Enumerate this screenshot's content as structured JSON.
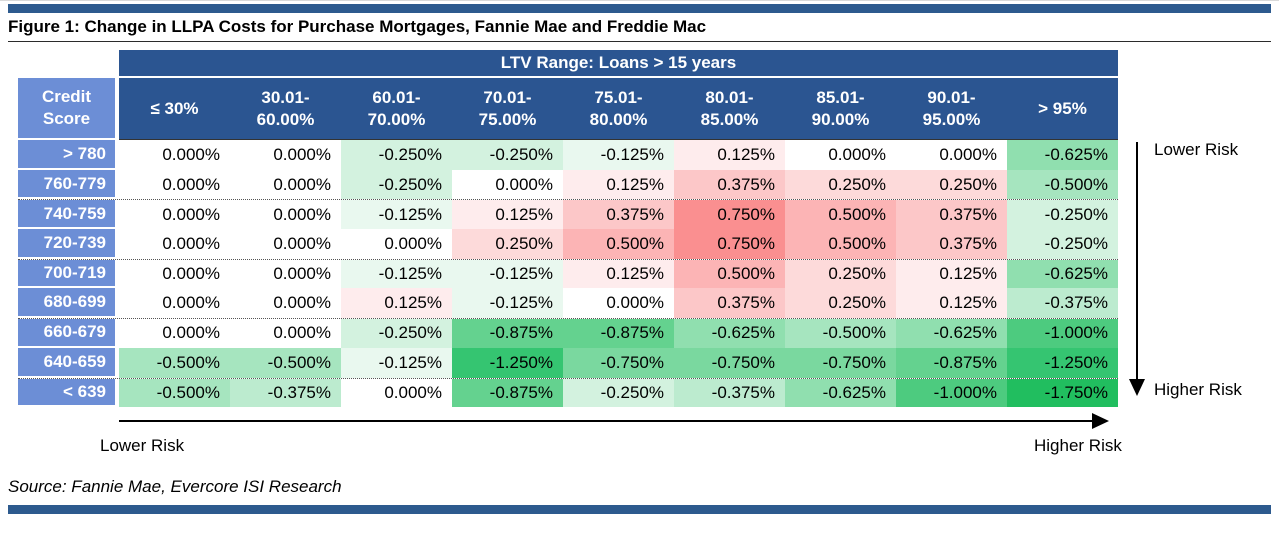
{
  "header": {
    "figure_label": "Figure 1",
    "separator": ": "
  },
  "colors": {
    "header_navy": "#2B5591",
    "label_blue": "#6C8ED6",
    "bar_navy": "#2D5A8E",
    "positive_max_red": "#F8696B",
    "negative_max_green": "#21BE5F",
    "zero_white": "#FFFFFF"
  },
  "chart_data": {
    "type": "heatmap",
    "title": "Change in LLPA Costs for Purchase Mortgages, Fannie Mae and Freddie Mac",
    "group_header": "LTV Range: Loans > 15 years",
    "row_axis_label": "Credit\nScore",
    "columns": [
      "≤ 30%",
      "30.01-\n60.00%",
      "60.01-\n70.00%",
      "70.01-\n75.00%",
      "75.01-\n80.00%",
      "80.01-\n85.00%",
      "85.01-\n90.00%",
      "90.01-\n95.00%",
      "> 95%"
    ],
    "rows": [
      "> 780",
      "760-779",
      "740-759",
      "720-739",
      "700-719",
      "680-699",
      "660-679",
      "640-659",
      "< 639"
    ],
    "values": [
      [
        0,
        0,
        -0.25,
        -0.25,
        -0.125,
        0.125,
        0,
        0,
        -0.625
      ],
      [
        0,
        0,
        -0.25,
        0,
        0.125,
        0.375,
        0.25,
        0.25,
        -0.5
      ],
      [
        0,
        0,
        -0.125,
        0.125,
        0.375,
        0.75,
        0.5,
        0.375,
        -0.25
      ],
      [
        0,
        0,
        0,
        0.25,
        0.5,
        0.75,
        0.5,
        0.375,
        -0.25
      ],
      [
        0,
        0,
        -0.125,
        -0.125,
        0.125,
        0.5,
        0.25,
        0.125,
        -0.625
      ],
      [
        0,
        0,
        0.125,
        -0.125,
        0,
        0.375,
        0.25,
        0.125,
        -0.375
      ],
      [
        0,
        0,
        -0.25,
        -0.875,
        -0.875,
        -0.625,
        -0.5,
        -0.625,
        -1
      ],
      [
        -0.5,
        -0.5,
        -0.125,
        -1.25,
        -0.75,
        -0.75,
        -0.75,
        -0.875,
        -1.25
      ],
      [
        -0.5,
        -0.375,
        0,
        -0.875,
        -0.25,
        -0.375,
        -0.625,
        -1,
        -1.75
      ]
    ],
    "value_format": "0.000%",
    "cell_colors": {
      "0.750": "#FA8F90",
      "0.500": "#FCB4B5",
      "0.375": "#FCC7C8",
      "0.250": "#FDDADA",
      "0.125": "#FEECED",
      "0.000": "#FFFFFF",
      "-0.125": "#E9F8EF",
      "-0.250": "#D3F2DF",
      "-0.375": "#BCEBCF",
      "-0.500": "#A6E5BF",
      "-0.625": "#90DFAF",
      "-0.750": "#7AD89F",
      "-0.875": "#64D28F",
      "-1.000": "#4DCB7F",
      "-1.250": "#35C571",
      "-1.750": "#21BE5F"
    },
    "annotations": {
      "right_top": "Lower Risk",
      "right_bottom": "Higher Risk",
      "bottom_left": "Lower Risk",
      "bottom_right": "Higher Risk"
    },
    "source": "Source: Fannie Mae, Evercore ISI Research",
    "legend_position": "none",
    "grid": "dotted separators every 2 credit-score rows"
  }
}
